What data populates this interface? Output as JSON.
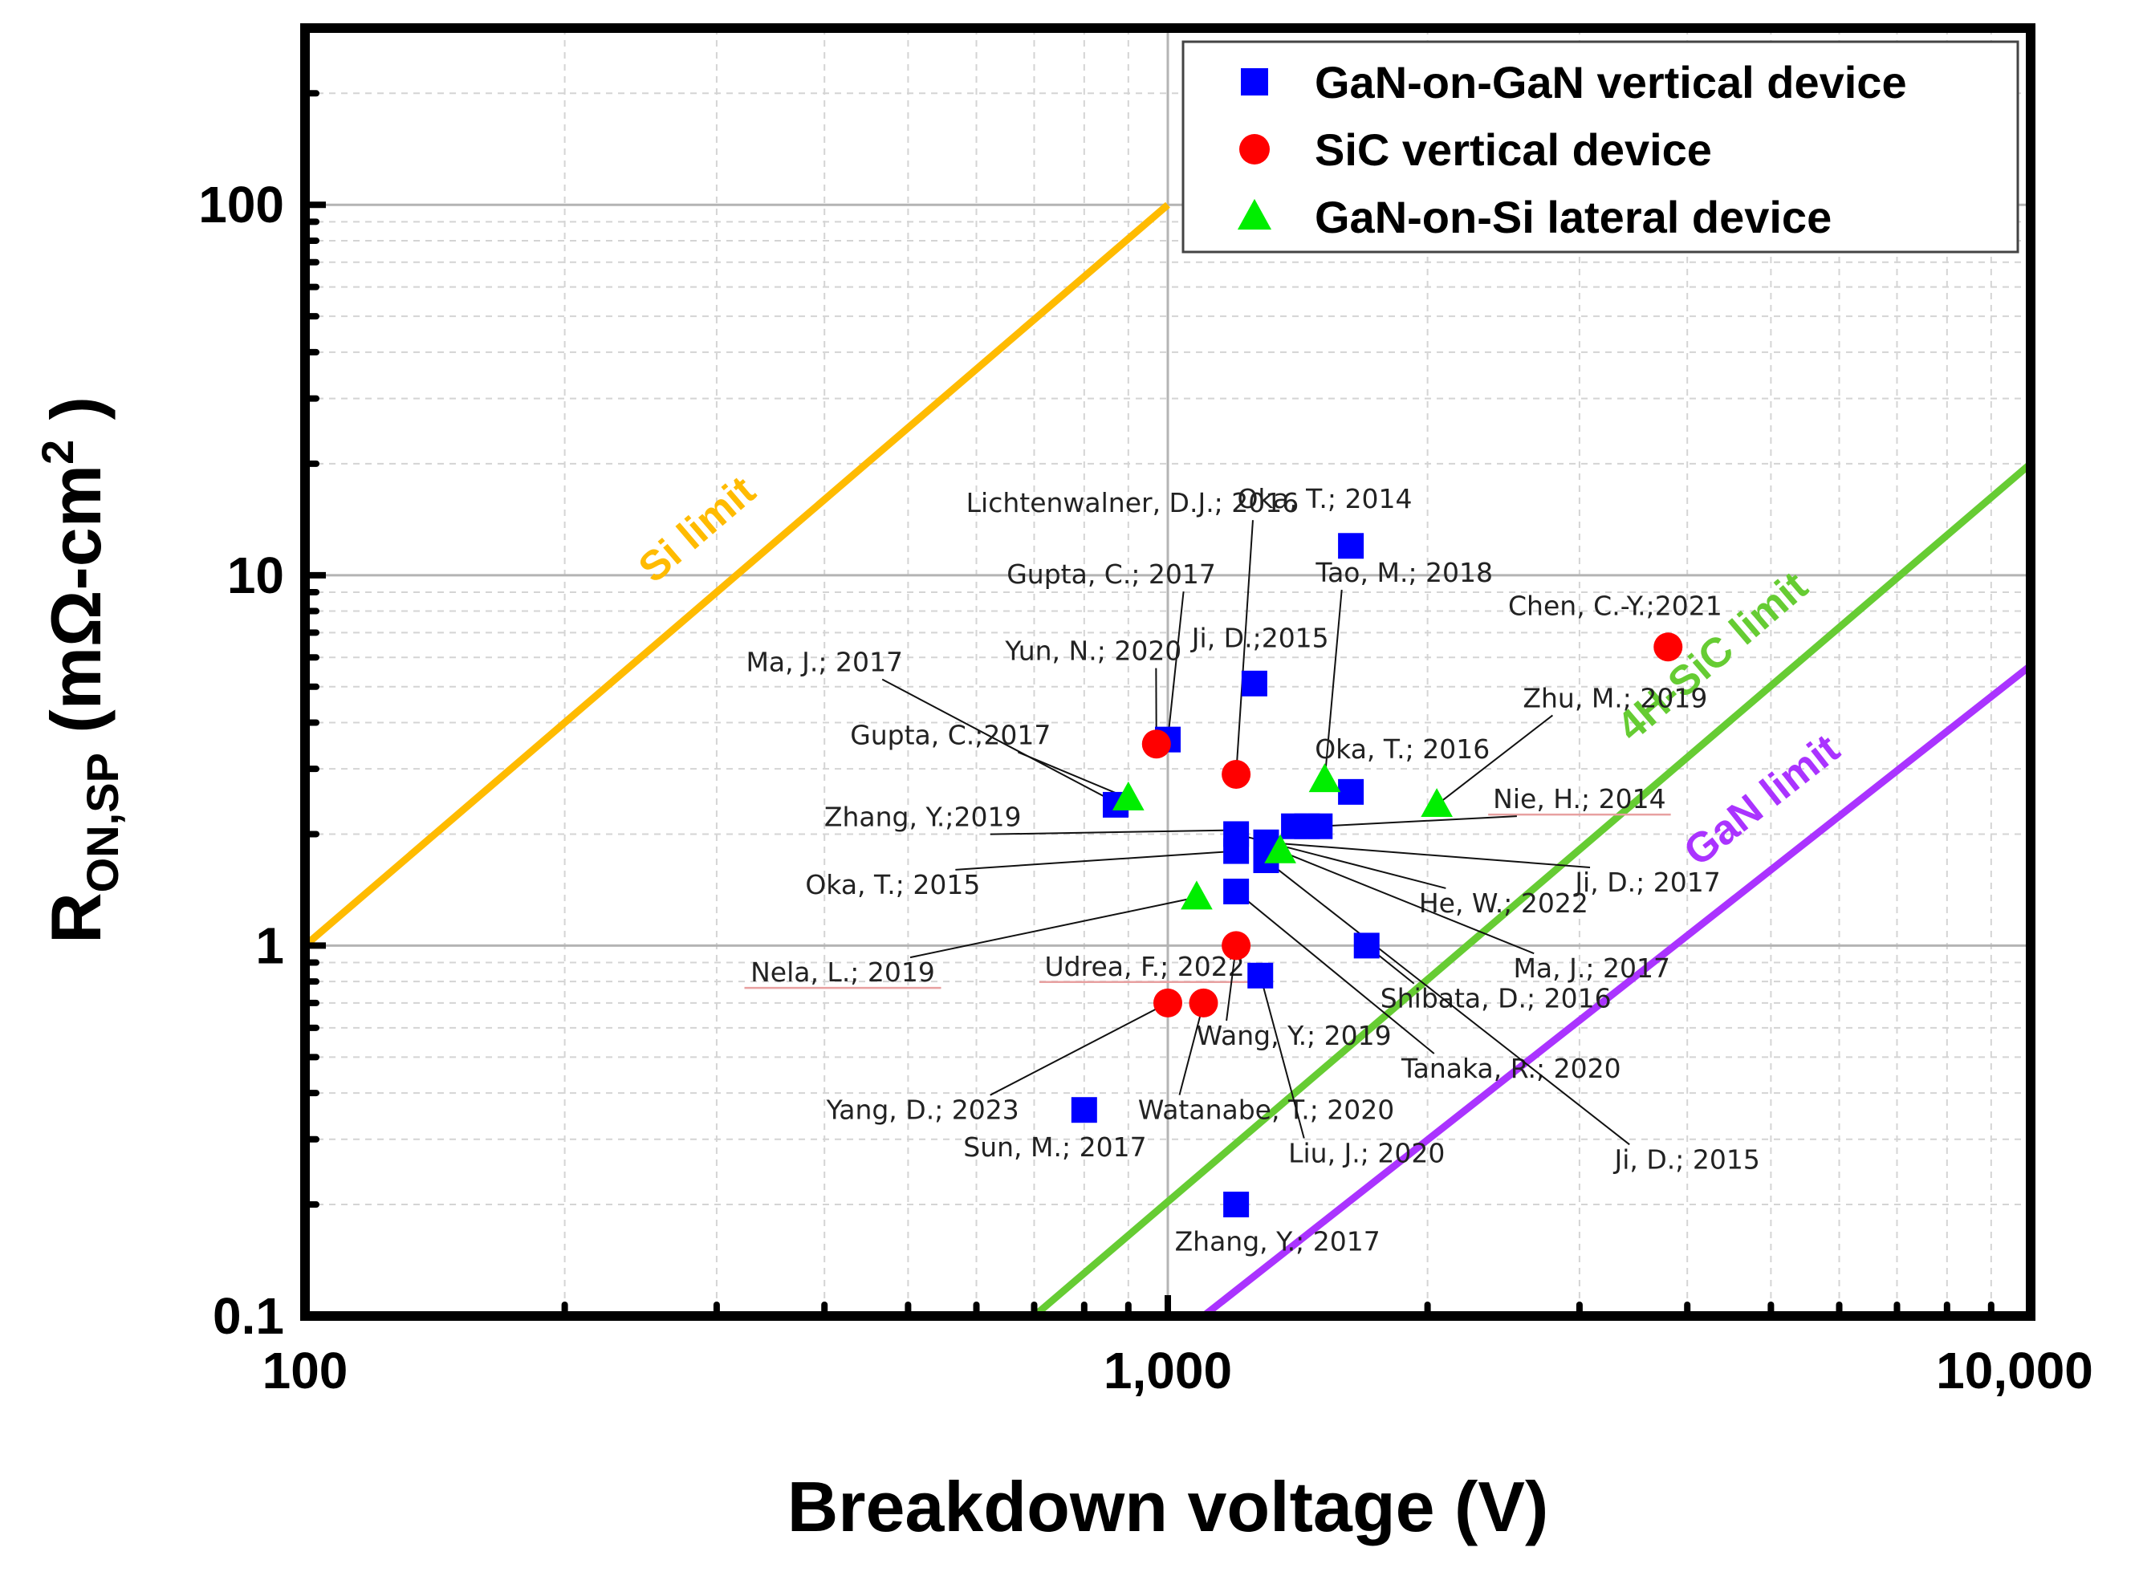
{
  "chart_data": {
    "type": "scatter",
    "xscale": "log",
    "yscale": "log",
    "xlim": [
      100,
      10000
    ],
    "ylim": [
      0.1,
      300
    ],
    "x_ticks": [
      {
        "value": 100,
        "label": "100"
      },
      {
        "value": 1000,
        "label": "1,000"
      },
      {
        "value": 10000,
        "label": "10,000"
      }
    ],
    "y_ticks": [
      {
        "value": 0.1,
        "label": "0.1"
      },
      {
        "value": 1,
        "label": "1"
      },
      {
        "value": 10,
        "label": "10"
      },
      {
        "value": 100,
        "label": "100"
      }
    ],
    "xlabel": "Breakdown voltage (V)",
    "ylabel": {
      "main": "R",
      "sub": "ON,SP",
      "unit_prefix": " (mΩ-cm",
      "sup": "2",
      "unit_suffix": " )"
    },
    "grid": true,
    "legend_position": "top-right",
    "legend": [
      {
        "name": "GaN-on-GaN vertical device",
        "marker": "square",
        "color": "#0000ff"
      },
      {
        "name": "SiC vertical device",
        "marker": "circle",
        "color": "#ff0000"
      },
      {
        "name": "GaN-on-Si lateral device",
        "marker": "triangle",
        "color": "#00ee00"
      }
    ],
    "limit_lines": [
      {
        "name": "Si limit",
        "color": "#ffbb00",
        "x": [
          100,
          1000
        ],
        "y": [
          1,
          100
        ]
      },
      {
        "name": "4H-SiC limit",
        "color": "#66cc33",
        "x": [
          700,
          10000
        ],
        "y": [
          0.1,
          20
        ]
      },
      {
        "name": "GaN limit",
        "color": "#aa33ff",
        "x": [
          1100,
          10000
        ],
        "y": [
          0.1,
          5.7
        ]
      }
    ],
    "series": [
      {
        "name": "GaN-on-GaN vertical device",
        "marker": "square",
        "color": "#0000ff",
        "points": [
          {
            "x": 1630,
            "y": 12.0
          },
          {
            "x": 1000,
            "y": 3.6
          },
          {
            "x": 1260,
            "y": 5.1
          },
          {
            "x": 1630,
            "y": 2.6
          },
          {
            "x": 1200,
            "y": 2.0
          },
          {
            "x": 1200,
            "y": 1.8
          },
          {
            "x": 1300,
            "y": 1.9
          },
          {
            "x": 1300,
            "y": 1.7
          },
          {
            "x": 1400,
            "y": 2.1
          },
          {
            "x": 1450,
            "y": 2.1
          },
          {
            "x": 1500,
            "y": 2.1
          },
          {
            "x": 870,
            "y": 2.4
          },
          {
            "x": 1200,
            "y": 1.4
          },
          {
            "x": 1700,
            "y": 1.0
          },
          {
            "x": 1280,
            "y": 0.83
          },
          {
            "x": 800,
            "y": 0.36
          },
          {
            "x": 1200,
            "y": 0.2
          }
        ]
      },
      {
        "name": "SiC vertical device",
        "marker": "circle",
        "color": "#ff0000",
        "points": [
          {
            "x": 3800,
            "y": 6.4
          },
          {
            "x": 970,
            "y": 3.5
          },
          {
            "x": 1200,
            "y": 2.9
          },
          {
            "x": 1200,
            "y": 1.0
          },
          {
            "x": 1000,
            "y": 0.7
          },
          {
            "x": 1100,
            "y": 0.7
          }
        ]
      },
      {
        "name": "GaN-on-Si lateral device",
        "marker": "triangle",
        "color": "#00ee00",
        "points": [
          {
            "x": 1520,
            "y": 2.8
          },
          {
            "x": 2050,
            "y": 2.4
          },
          {
            "x": 900,
            "y": 2.5
          },
          {
            "x": 1350,
            "y": 1.8
          },
          {
            "x": 1080,
            "y": 1.35
          }
        ]
      }
    ],
    "annotations": [
      {
        "text": "Lichtenwalner, D.J.; 2016",
        "text_x": 910,
        "text_y": 14.8,
        "target_x": 1200,
        "target_y": 2.9,
        "underline": false
      },
      {
        "text": "Oka, T.; 2014",
        "text_x": 1520,
        "text_y": 15.2,
        "target_x": null,
        "target_y": null,
        "underline": false
      },
      {
        "text": "Gupta, C.; 2017",
        "text_x": 860,
        "text_y": 9.5,
        "target_x": 1000,
        "target_y": 3.6,
        "underline": false
      },
      {
        "text": "Tao, M.; 2018",
        "text_x": 1880,
        "text_y": 9.6,
        "target_x": 1520,
        "target_y": 2.8,
        "underline": false
      },
      {
        "text": "Chen, C.-Y.;2021",
        "text_x": 3300,
        "text_y": 7.8,
        "target_x": null,
        "target_y": null,
        "underline": false
      },
      {
        "text": "Ji, D.;2015",
        "text_x": 1280,
        "text_y": 6.4,
        "target_x": null,
        "target_y": null,
        "underline": false
      },
      {
        "text": "Yun, N.; 2020",
        "text_x": 820,
        "text_y": 5.9,
        "target_x": 970,
        "target_y": 3.5,
        "underline": false
      },
      {
        "text": "Ma, J.; 2017",
        "text_x": 400,
        "text_y": 5.5,
        "target_x": 880,
        "target_y": 2.4,
        "underline": false
      },
      {
        "text": "Zhu, M.; 2019",
        "text_x": 3300,
        "text_y": 4.4,
        "target_x": 2050,
        "target_y": 2.4,
        "underline": false
      },
      {
        "text": "Gupta, C.;2017",
        "text_x": 560,
        "text_y": 3.5,
        "target_x": 900,
        "target_y": 2.5,
        "underline": false
      },
      {
        "text": "Oka, T.; 2016",
        "text_x": 1870,
        "text_y": 3.2,
        "target_x": null,
        "target_y": null,
        "underline": false
      },
      {
        "text": "Nie, H.; 2014",
        "text_x": 3000,
        "text_y": 2.35,
        "target_x": 1500,
        "target_y": 2.1,
        "underline": true
      },
      {
        "text": "Zhang, Y.;2019",
        "text_x": 520,
        "text_y": 2.1,
        "target_x": 1200,
        "target_y": 2.05,
        "underline": false
      },
      {
        "text": "Oka, T.; 2015",
        "text_x": 480,
        "text_y": 1.38,
        "target_x": 1200,
        "target_y": 1.8,
        "underline": false
      },
      {
        "text": "He, W.; 2022",
        "text_x": 2450,
        "text_y": 1.23,
        "target_x": 1200,
        "target_y": 2.0,
        "underline": false
      },
      {
        "text": "Ji, D.; 2017",
        "text_x": 3600,
        "text_y": 1.4,
        "target_x": 1300,
        "target_y": 1.9,
        "underline": false
      },
      {
        "text": "Ma, J.; 2017",
        "text_x": 3100,
        "text_y": 0.82,
        "target_x": 1350,
        "target_y": 1.8,
        "underline": false
      },
      {
        "text": "Nela, L.; 2019",
        "text_x": 420,
        "text_y": 0.8,
        "target_x": 1080,
        "target_y": 1.35,
        "underline": true
      },
      {
        "text": "Udrea, F.; 2022",
        "text_x": 940,
        "text_y": 0.83,
        "target_x": null,
        "target_y": null,
        "underline": true
      },
      {
        "text": "Shibata, D.; 2016",
        "text_x": 2400,
        "text_y": 0.68,
        "target_x": 1700,
        "target_y": 1.0,
        "underline": false
      },
      {
        "text": "Wang, Y.; 2019",
        "text_x": 1400,
        "text_y": 0.54,
        "target_x": 1200,
        "target_y": 1.0,
        "underline": false
      },
      {
        "text": "Tanaka, R.; 2020",
        "text_x": 2500,
        "text_y": 0.44,
        "target_x": 1200,
        "target_y": 1.4,
        "underline": false
      },
      {
        "text": "Yang, D.; 2023",
        "text_x": 520,
        "text_y": 0.34,
        "target_x": 1000,
        "target_y": 0.7,
        "underline": false
      },
      {
        "text": "Watanabe, T.; 2020",
        "text_x": 1300,
        "text_y": 0.34,
        "target_x": 1100,
        "target_y": 0.7,
        "underline": false
      },
      {
        "text": "Sun, M.; 2017",
        "text_x": 740,
        "text_y": 0.27,
        "target_x": null,
        "target_y": null,
        "underline": false
      },
      {
        "text": "Liu, J.; 2020",
        "text_x": 1700,
        "text_y": 0.26,
        "target_x": 1280,
        "target_y": 0.83,
        "underline": false
      },
      {
        "text": "Ji, D.; 2015",
        "text_x": 4000,
        "text_y": 0.25,
        "target_x": 1300,
        "target_y": 1.7,
        "underline": false
      },
      {
        "text": "Zhang, Y.; 2017",
        "text_x": 1340,
        "text_y": 0.15,
        "target_x": null,
        "target_y": null,
        "underline": false
      }
    ]
  }
}
